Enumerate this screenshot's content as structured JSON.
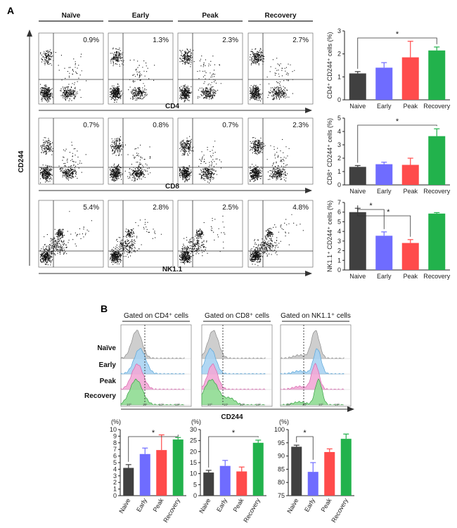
{
  "panel_labels": {
    "a": "A",
    "b": "B"
  },
  "colors": {
    "naive": "#404040",
    "early": "#6f6cff",
    "peak": "#ff4b4b",
    "recovery": "#22b24c"
  },
  "panel_a": {
    "conditions": [
      "Naïve",
      "Early",
      "Peak",
      "Recovery"
    ],
    "y_axis_label": "CD244",
    "rows": [
      {
        "marker": "CD4",
        "percents": [
          "0.9%",
          "1.3%",
          "2.3%",
          "2.7%"
        ]
      },
      {
        "marker": "CD8",
        "percents": [
          "0.7%",
          "0.8%",
          "0.7%",
          "2.3%"
        ]
      },
      {
        "marker": "NK1.1",
        "percents": [
          "5.4%",
          "2.8%",
          "2.5%",
          "4.8%"
        ]
      }
    ]
  },
  "panel_b": {
    "gates": [
      "Gated on CD4⁺ cells",
      "Gated on CD8⁺ cells",
      "Gated on NK1.1⁺ cells"
    ],
    "row_labels": [
      "Naïve",
      "Early",
      "Peak",
      "Recovery"
    ],
    "x_axis_label": "CD244",
    "tick_labels": [
      "10⁰",
      "10¹",
      "10²",
      "10³"
    ]
  },
  "chart_data": [
    {
      "type": "bar",
      "ylabel": "CD4⁺ CD244⁺ cells (%)",
      "categories": [
        "Naive",
        "Early",
        "Peak",
        "Recovery"
      ],
      "values": [
        1.15,
        1.4,
        1.85,
        2.15
      ],
      "errors": [
        0.08,
        0.22,
        0.7,
        0.15
      ],
      "ylim": [
        0,
        3
      ],
      "yticks": [
        "0",
        "1",
        "2",
        "3"
      ],
      "significance": [
        {
          "from": 0,
          "to": 3,
          "label": "*"
        }
      ]
    },
    {
      "type": "bar",
      "ylabel": "CD8⁺ CD244⁺ cells (%)",
      "categories": [
        "Naive",
        "Early",
        "Peak",
        "Recovery"
      ],
      "values": [
        1.35,
        1.55,
        1.5,
        3.65
      ],
      "errors": [
        0.1,
        0.15,
        0.5,
        0.55
      ],
      "ylim": [
        0,
        5
      ],
      "yticks": [
        "0",
        "1",
        "2",
        "3",
        "4",
        "5"
      ],
      "significance": [
        {
          "from": 0,
          "to": 3,
          "label": "*"
        }
      ]
    },
    {
      "type": "bar",
      "ylabel": "NK1.1⁺ CD244⁺ cells (%)",
      "categories": [
        "Naive",
        "Early",
        "Peak",
        "Recovery"
      ],
      "values": [
        6.0,
        3.55,
        2.8,
        5.85
      ],
      "errors": [
        0.4,
        0.4,
        0.35,
        0.1
      ],
      "ylim": [
        0,
        7
      ],
      "yticks": [
        "0",
        "1",
        "2",
        "3",
        "4",
        "5",
        "6",
        "7"
      ],
      "significance": [
        {
          "from": 0,
          "to": 1,
          "label": "*"
        },
        {
          "from": 0,
          "to": 2,
          "label": "*"
        }
      ]
    },
    {
      "type": "bar",
      "ylabel": "(%)",
      "categories": [
        "Naive",
        "Early",
        "Peak",
        "Recovery"
      ],
      "values": [
        4.2,
        6.3,
        6.9,
        8.5
      ],
      "errors": [
        0.5,
        0.9,
        2.3,
        0.3
      ],
      "ylim": [
        0,
        10
      ],
      "yticks": [
        "0",
        "1",
        "2",
        "3",
        "4",
        "5",
        "6",
        "7",
        "8",
        "9",
        "10"
      ],
      "significance": [
        {
          "from": 0,
          "to": 3,
          "label": "*"
        }
      ]
    },
    {
      "type": "bar",
      "ylabel": "(%)",
      "categories": [
        "Naive",
        "Early",
        "Peak",
        "Recovery"
      ],
      "values": [
        10.5,
        13.5,
        11.0,
        24.0
      ],
      "errors": [
        1.0,
        2.5,
        2.0,
        1.2
      ],
      "ylim": [
        0,
        30
      ],
      "yticks": [
        "0",
        "5",
        "10",
        "15",
        "20",
        "25",
        "30"
      ],
      "significance": [
        {
          "from": 0,
          "to": 3,
          "label": "*"
        }
      ]
    },
    {
      "type": "bar",
      "ylabel": "(%)",
      "categories": [
        "Naive",
        "Early",
        "Peak",
        "Recovery"
      ],
      "values": [
        93.5,
        84.0,
        91.5,
        96.5
      ],
      "errors": [
        0.6,
        3.5,
        1.2,
        1.8
      ],
      "ylim": [
        75,
        100
      ],
      "yticks": [
        "75",
        "80",
        "85",
        "90",
        "95",
        "100"
      ],
      "significance": [
        {
          "from": 0,
          "to": 1,
          "label": "*"
        }
      ]
    }
  ]
}
